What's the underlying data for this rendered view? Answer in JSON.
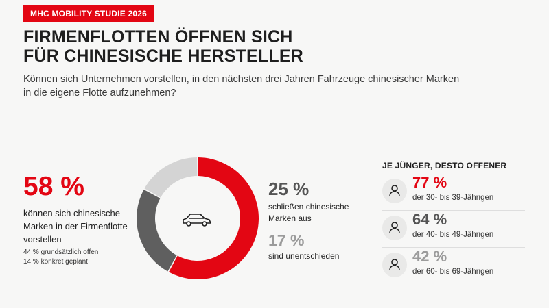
{
  "badge": "MHC MOBILITY STUDIE 2026",
  "title_line1": "FIRMENFLOTTEN ÖFFNEN SICH",
  "title_line2": "FÜR CHINESISCHE HERSTELLER",
  "subtitle": "Können sich Unternehmen vorstellen, in den nächsten drei Jahren Fahrzeuge chinesischer Marken in die eigene Flotte aufzunehmen?",
  "left": {
    "percent": "58 %",
    "description": "können sich chinesische Marken in der Firmenflotte vorstellen",
    "detail1": "44 % grundsätzlich offen",
    "detail2": "14 % konkret geplant"
  },
  "middle": {
    "pct_reject": "25 %",
    "desc_reject": "schließen chinesische Marken aus",
    "pct_undecided": "17 %",
    "desc_undecided": "sind unentschieden"
  },
  "side": {
    "heading": "JE JÜNGER, DESTO OFFENER",
    "rows": [
      {
        "percent": "77 %",
        "label": "der 30- bis 39-Jährigen",
        "color": "#e30613"
      },
      {
        "percent": "64 %",
        "label": "der 40- bis 49-Jährigen",
        "color": "#555555"
      },
      {
        "percent": "42 %",
        "label": "der 60- bis 69-Jährigen",
        "color": "#9b9b9b"
      }
    ]
  },
  "center_icon": "car-icon",
  "row_icon": "person-icon",
  "chart_data": [
    {
      "type": "pie",
      "variant": "donut",
      "categories": [
        "können sich chinesische Marken in der Firmenflotte vorstellen",
        "schließen chinesische Marken aus",
        "sind unentschieden"
      ],
      "values": [
        58,
        25,
        17
      ],
      "colors": [
        "#e30613",
        "#5f5f5f",
        "#d4d4d4"
      ],
      "start": "top",
      "direction": "clockwise",
      "sub_breakdown": [
        {
          "label": "grundsätzlich offen",
          "value": 44
        },
        {
          "label": "konkret geplant",
          "value": 14
        }
      ]
    },
    {
      "type": "table",
      "title": "JE JÜNGER, DESTO OFFENER",
      "categories": [
        "der 30- bis 39-Jährigen",
        "der 40- bis 49-Jährigen",
        "der 60- bis 69-Jährigen"
      ],
      "values": [
        77,
        64,
        42
      ]
    }
  ]
}
